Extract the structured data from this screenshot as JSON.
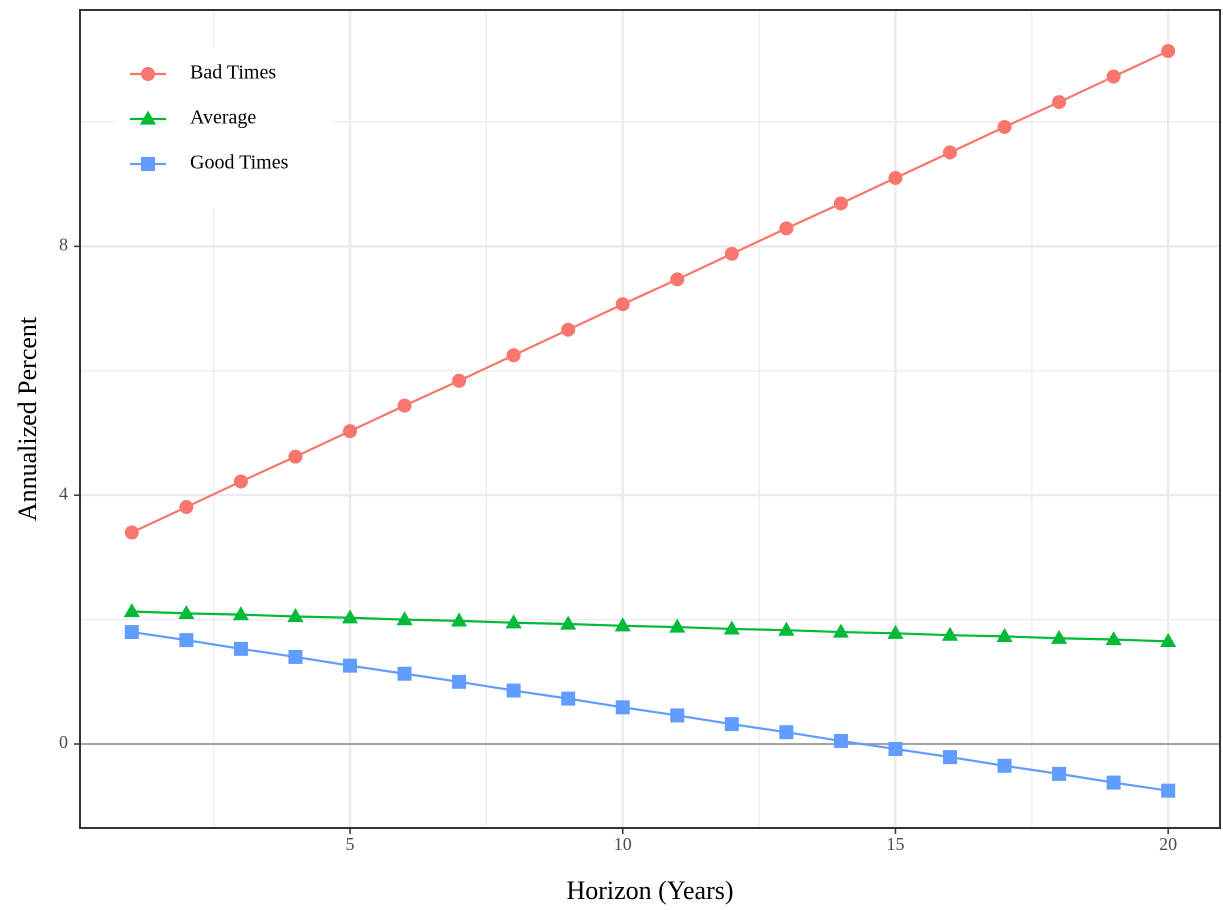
{
  "chart_data": {
    "type": "line",
    "x_label": "Horizon (Years)",
    "y_label": "Annualized Percent",
    "x": [
      1,
      2,
      3,
      4,
      5,
      6,
      7,
      8,
      9,
      10,
      11,
      12,
      13,
      14,
      15,
      16,
      17,
      18,
      19,
      20
    ],
    "series": [
      {
        "name": "Bad Times",
        "color": "#F8766D",
        "marker": "circle",
        "values": [
          3.4,
          3.81,
          4.22,
          4.62,
          5.03,
          5.44,
          5.84,
          6.25,
          6.66,
          7.07,
          7.47,
          7.88,
          8.29,
          8.69,
          9.1,
          9.51,
          9.92,
          10.32,
          10.73,
          11.14
        ]
      },
      {
        "name": "Average",
        "color": "#00BA38",
        "marker": "triangle",
        "values": [
          2.13,
          2.1,
          2.08,
          2.05,
          2.03,
          2.0,
          1.98,
          1.95,
          1.93,
          1.9,
          1.88,
          1.85,
          1.83,
          1.8,
          1.78,
          1.75,
          1.73,
          1.7,
          1.68,
          1.65
        ]
      },
      {
        "name": "Good Times",
        "color": "#619CFF",
        "marker": "square",
        "values": [
          1.8,
          1.67,
          1.53,
          1.4,
          1.26,
          1.13,
          1.0,
          0.86,
          0.73,
          0.59,
          0.46,
          0.32,
          0.19,
          0.05,
          -0.08,
          -0.21,
          -0.35,
          -0.48,
          -0.62,
          -0.75
        ]
      }
    ],
    "xlim": [
      0.05,
      20.95
    ],
    "ylim": [
      -1.35,
      11.8
    ],
    "xticks": [
      5,
      10,
      15,
      20
    ],
    "yticks": [
      0,
      4,
      8
    ],
    "minor_xticks": [
      2.5,
      7.5,
      12.5,
      17.5
    ],
    "minor_yticks": [
      2,
      6,
      10
    ],
    "hline": 0,
    "grid": true,
    "legend": "top-left"
  }
}
